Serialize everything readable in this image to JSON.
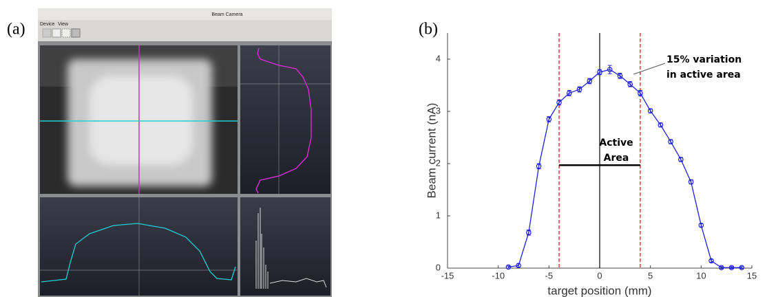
{
  "panel_labels": [
    "(a)",
    "(b)"
  ],
  "screenshot": {
    "window_title": "Beam Camera",
    "menu": [
      "Device",
      "View"
    ]
  },
  "chart_data": {
    "type": "line",
    "xlabel": "target position (mm)",
    "ylabel": "Beam current (nA)",
    "x": [
      -9,
      -8,
      -7,
      -6,
      -5,
      -4,
      -3,
      -2,
      -1,
      0,
      1,
      2,
      3,
      4,
      5,
      6,
      7,
      8,
      9,
      10,
      11,
      12,
      13,
      14
    ],
    "values": [
      0.02,
      0.05,
      0.68,
      1.95,
      2.85,
      3.17,
      3.35,
      3.42,
      3.58,
      3.75,
      3.8,
      3.68,
      3.52,
      3.35,
      3.01,
      2.74,
      2.42,
      2.08,
      1.65,
      0.82,
      0.14,
      0.01,
      0.01,
      0.01
    ],
    "errors": [
      0.02,
      0.03,
      0.05,
      0.05,
      0.05,
      0.05,
      0.05,
      0.05,
      0.05,
      0.05,
      0.08,
      0.05,
      0.05,
      0.05,
      0.04,
      0.04,
      0.04,
      0.04,
      0.04,
      0.03,
      0.03,
      0.02,
      0.02,
      0.02
    ],
    "color": "#1f1fe0",
    "xlim": [
      -15,
      15
    ],
    "xticks": [
      -15,
      -10,
      -5,
      0,
      5,
      10,
      15
    ],
    "ylim": [
      0,
      4.5
    ],
    "yticks": [
      0,
      1,
      2,
      3,
      4
    ],
    "vlines": [
      {
        "x": -4,
        "color": "#ff0000",
        "style": "dashed"
      },
      {
        "x": 0,
        "color": "#000000",
        "style": "solid"
      },
      {
        "x": 4,
        "color": "#ff0000",
        "style": "dashed"
      }
    ],
    "active_area": {
      "x": [
        -4,
        4
      ],
      "y": 1.97
    },
    "annotations": [
      [
        "15% variation",
        "in active area"
      ],
      [
        "Active",
        "Area"
      ]
    ]
  }
}
